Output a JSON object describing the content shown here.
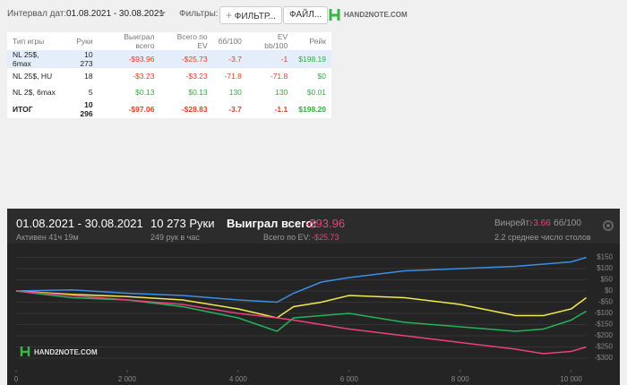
{
  "toolbar": {
    "date_label": "Интервал дат:",
    "date_range": "01.08.2021 - 30.08.2021",
    "filters_label": "Фильтры:",
    "filter_button": "ФИЛЬТР...",
    "file_button": "ФАЙЛ...",
    "logo": "HAND2NOTE.COM"
  },
  "table": {
    "header": [
      "Тип игры",
      "Руки",
      "Выиграл всего",
      "Всего по EV",
      "бб/100",
      "EV bb/100",
      "Рейк"
    ],
    "rows": [
      [
        "NL 25$, 6max",
        "10 273",
        "-$93.96",
        "-$25.73",
        "-3.7",
        "-1",
        "$198.19"
      ],
      [
        "NL 25$, HU",
        "18",
        "-$3.23",
        "-$3.23",
        "-71.8",
        "-71.8",
        "$0"
      ],
      [
        "NL 2$, 6max",
        "5",
        "$0.13",
        "$0.13",
        "130",
        "130",
        "$0.01"
      ],
      [
        "ИТОГ",
        "10 296",
        "-$97.06",
        "-$28.83",
        "-3.7",
        "-1.1",
        "$198.20"
      ]
    ]
  },
  "panel": {
    "date_range": "01.08.2021 - 30.08.2021",
    "active": "Активен 41ч 19м",
    "hands": "10 273 Руки",
    "hands_per_hour": "249 рук в час",
    "won_label": "Выиграл всего:",
    "won_value": "-$93.96",
    "ev_label": "Всего по EV:",
    "ev_value": "-$25.73",
    "winrate_label": "Винрейт:",
    "winrate_value": "-3.66",
    "winrate_unit": "бб/100",
    "tables": "2.2 среднее число столов",
    "logo": "HAND2NOTE.COM"
  },
  "chart_data": {
    "type": "line",
    "x": [
      0,
      1000,
      2000,
      3000,
      4000,
      4700,
      5000,
      5500,
      6000,
      7000,
      8000,
      9000,
      9500,
      10000,
      10273
    ],
    "series": [
      {
        "color": "#3b8fe6",
        "values": [
          0,
          5,
          -10,
          -20,
          -40,
          -50,
          -10,
          40,
          60,
          90,
          100,
          110,
          120,
          130,
          150
        ]
      },
      {
        "color": "#f2e94e",
        "values": [
          0,
          -15,
          -25,
          -40,
          -80,
          -120,
          -70,
          -50,
          -20,
          -30,
          -60,
          -110,
          -110,
          -80,
          -30
        ]
      },
      {
        "color": "#22b35c",
        "values": [
          0,
          -30,
          -40,
          -70,
          -120,
          -180,
          -120,
          -110,
          -100,
          -140,
          -160,
          -180,
          -170,
          -130,
          -90
        ]
      },
      {
        "color": "#e8437a",
        "values": [
          0,
          -20,
          -40,
          -60,
          -100,
          -120,
          -130,
          -150,
          -170,
          -200,
          -230,
          -260,
          -280,
          -270,
          -250
        ]
      }
    ],
    "xlim": [
      0,
      10280
    ],
    "ylim": [
      -320,
      160
    ],
    "xticks": [
      0,
      {
        "value": 2000,
        "label": "2 000"
      },
      {
        "value": 4000,
        "label": "4 000"
      },
      {
        "value": 6000,
        "label": "6 000"
      },
      {
        "value": 8000,
        "label": "8 000"
      },
      {
        "value": 10000,
        "label": "10 000"
      }
    ],
    "yticks": [
      {
        "value": 150,
        "label": "$150"
      },
      {
        "value": 100,
        "label": "$100"
      },
      {
        "value": 50,
        "label": "$50"
      },
      {
        "value": 0,
        "label": "$0"
      },
      {
        "value": -50,
        "label": "-$50"
      },
      {
        "value": -100,
        "label": "-$100"
      },
      {
        "value": -150,
        "label": "-$150"
      },
      {
        "value": -200,
        "label": "-$200"
      },
      {
        "value": -250,
        "label": "-$250"
      },
      {
        "value": -300,
        "label": "-$300"
      }
    ],
    "grid": true
  }
}
